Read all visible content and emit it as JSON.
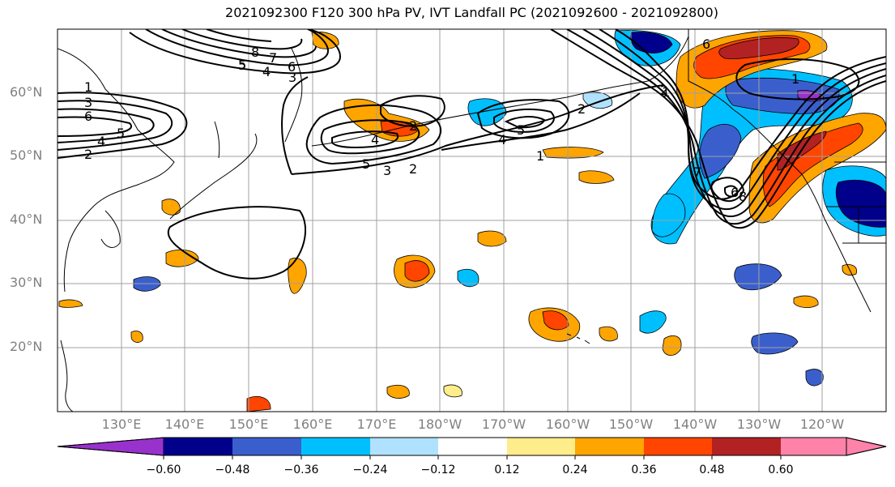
{
  "title": "2021092300 F120 300 hPa PV, IVT Landfall PC (2021092600 - 2021092800)",
  "map": {
    "projection": "PlateCarree",
    "extent": {
      "lon_min": 120,
      "lon_max": 250,
      "lat_min": 10,
      "lat_max": 70
    },
    "lat_labels": [
      "60°N",
      "50°N",
      "40°N",
      "30°N",
      "20°N"
    ],
    "lon_labels": [
      "130°E",
      "140°E",
      "150°E",
      "160°E",
      "170°E",
      "180°W",
      "170°W",
      "160°W",
      "150°W",
      "140°W",
      "130°W",
      "120°W"
    ],
    "gridlines": true,
    "coastlines": true,
    "colors": {
      "grid": "#a0a0a0",
      "coast": "#000000",
      "contour": "#000000",
      "tick_label": "#808080"
    },
    "contour_labels": [
      "1",
      "3",
      "6",
      "2",
      "4",
      "5",
      "5",
      "8",
      "7",
      "6",
      "5",
      "4",
      "3",
      "2",
      "4",
      "5",
      "3",
      "2",
      "5",
      "4",
      "2",
      "1",
      "1",
      "7",
      "6",
      "8",
      "1",
      "6",
      "2"
    ]
  },
  "colorbar": {
    "extend": "both",
    "ticks": [
      "−0.60",
      "−0.48",
      "−0.36",
      "−0.24",
      "−0.12",
      "0.12",
      "0.24",
      "0.36",
      "0.48",
      "0.60"
    ],
    "colors": [
      "#9932cc",
      "#00008b",
      "#3a5fcd",
      "#00bfff",
      "#b0e2ff",
      "#ffffff",
      "#ffec8b",
      "#ffa500",
      "#ff4500",
      "#b22222",
      "#ff82ab"
    ]
  }
}
